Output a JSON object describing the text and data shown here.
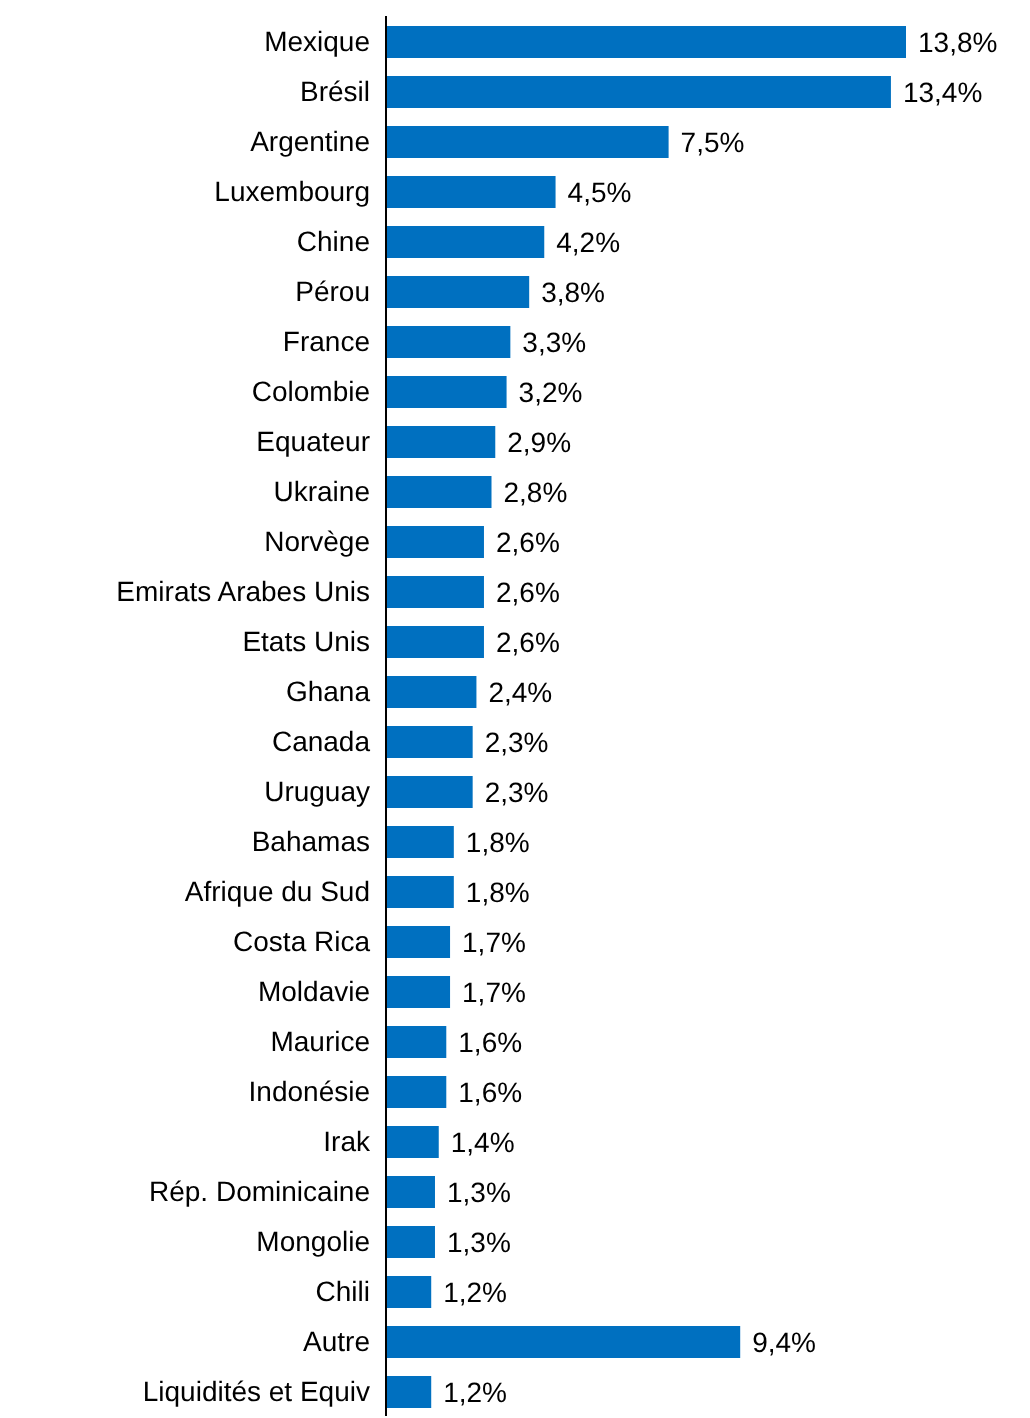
{
  "chart_data": {
    "type": "bar",
    "orientation": "horizontal",
    "tick_labels": "y",
    "categories": [
      "Mexique",
      "Brésil",
      "Argentine",
      "Luxembourg",
      "Chine",
      "Pérou",
      "France",
      "Colombie",
      "Equateur",
      "Ukraine",
      "Norvège",
      "Emirats Arabes Unis",
      "Etats Unis",
      "Ghana",
      "Canada",
      "Uruguay",
      "Bahamas",
      "Afrique du Sud",
      "Costa Rica",
      "Moldavie",
      "Maurice",
      "Indonésie",
      "Irak",
      "Rép. Dominicaine",
      "Mongolie",
      "Chili",
      "Autre",
      "Liquidités et Equiv"
    ],
    "values": [
      13.8,
      13.4,
      7.5,
      4.5,
      4.2,
      3.8,
      3.3,
      3.2,
      2.9,
      2.8,
      2.6,
      2.6,
      2.6,
      2.4,
      2.3,
      2.3,
      1.8,
      1.8,
      1.7,
      1.7,
      1.6,
      1.6,
      1.4,
      1.3,
      1.3,
      1.2,
      9.4,
      1.2
    ],
    "value_labels": [
      "13,8%",
      "13,4%",
      "7,5%",
      "4,5%",
      "4,2%",
      "3,8%",
      "3,3%",
      "3,2%",
      "2,9%",
      "2,8%",
      "2,6%",
      "2,6%",
      "2,6%",
      "2,4%",
      "2,3%",
      "2,3%",
      "1,8%",
      "1,8%",
      "1,7%",
      "1,7%",
      "1,6%",
      "1,6%",
      "1,4%",
      "1,3%",
      "1,3%",
      "1,2%",
      "9,4%",
      "1,2%"
    ],
    "color": "#0070c0",
    "grid": false,
    "legend": false
  }
}
